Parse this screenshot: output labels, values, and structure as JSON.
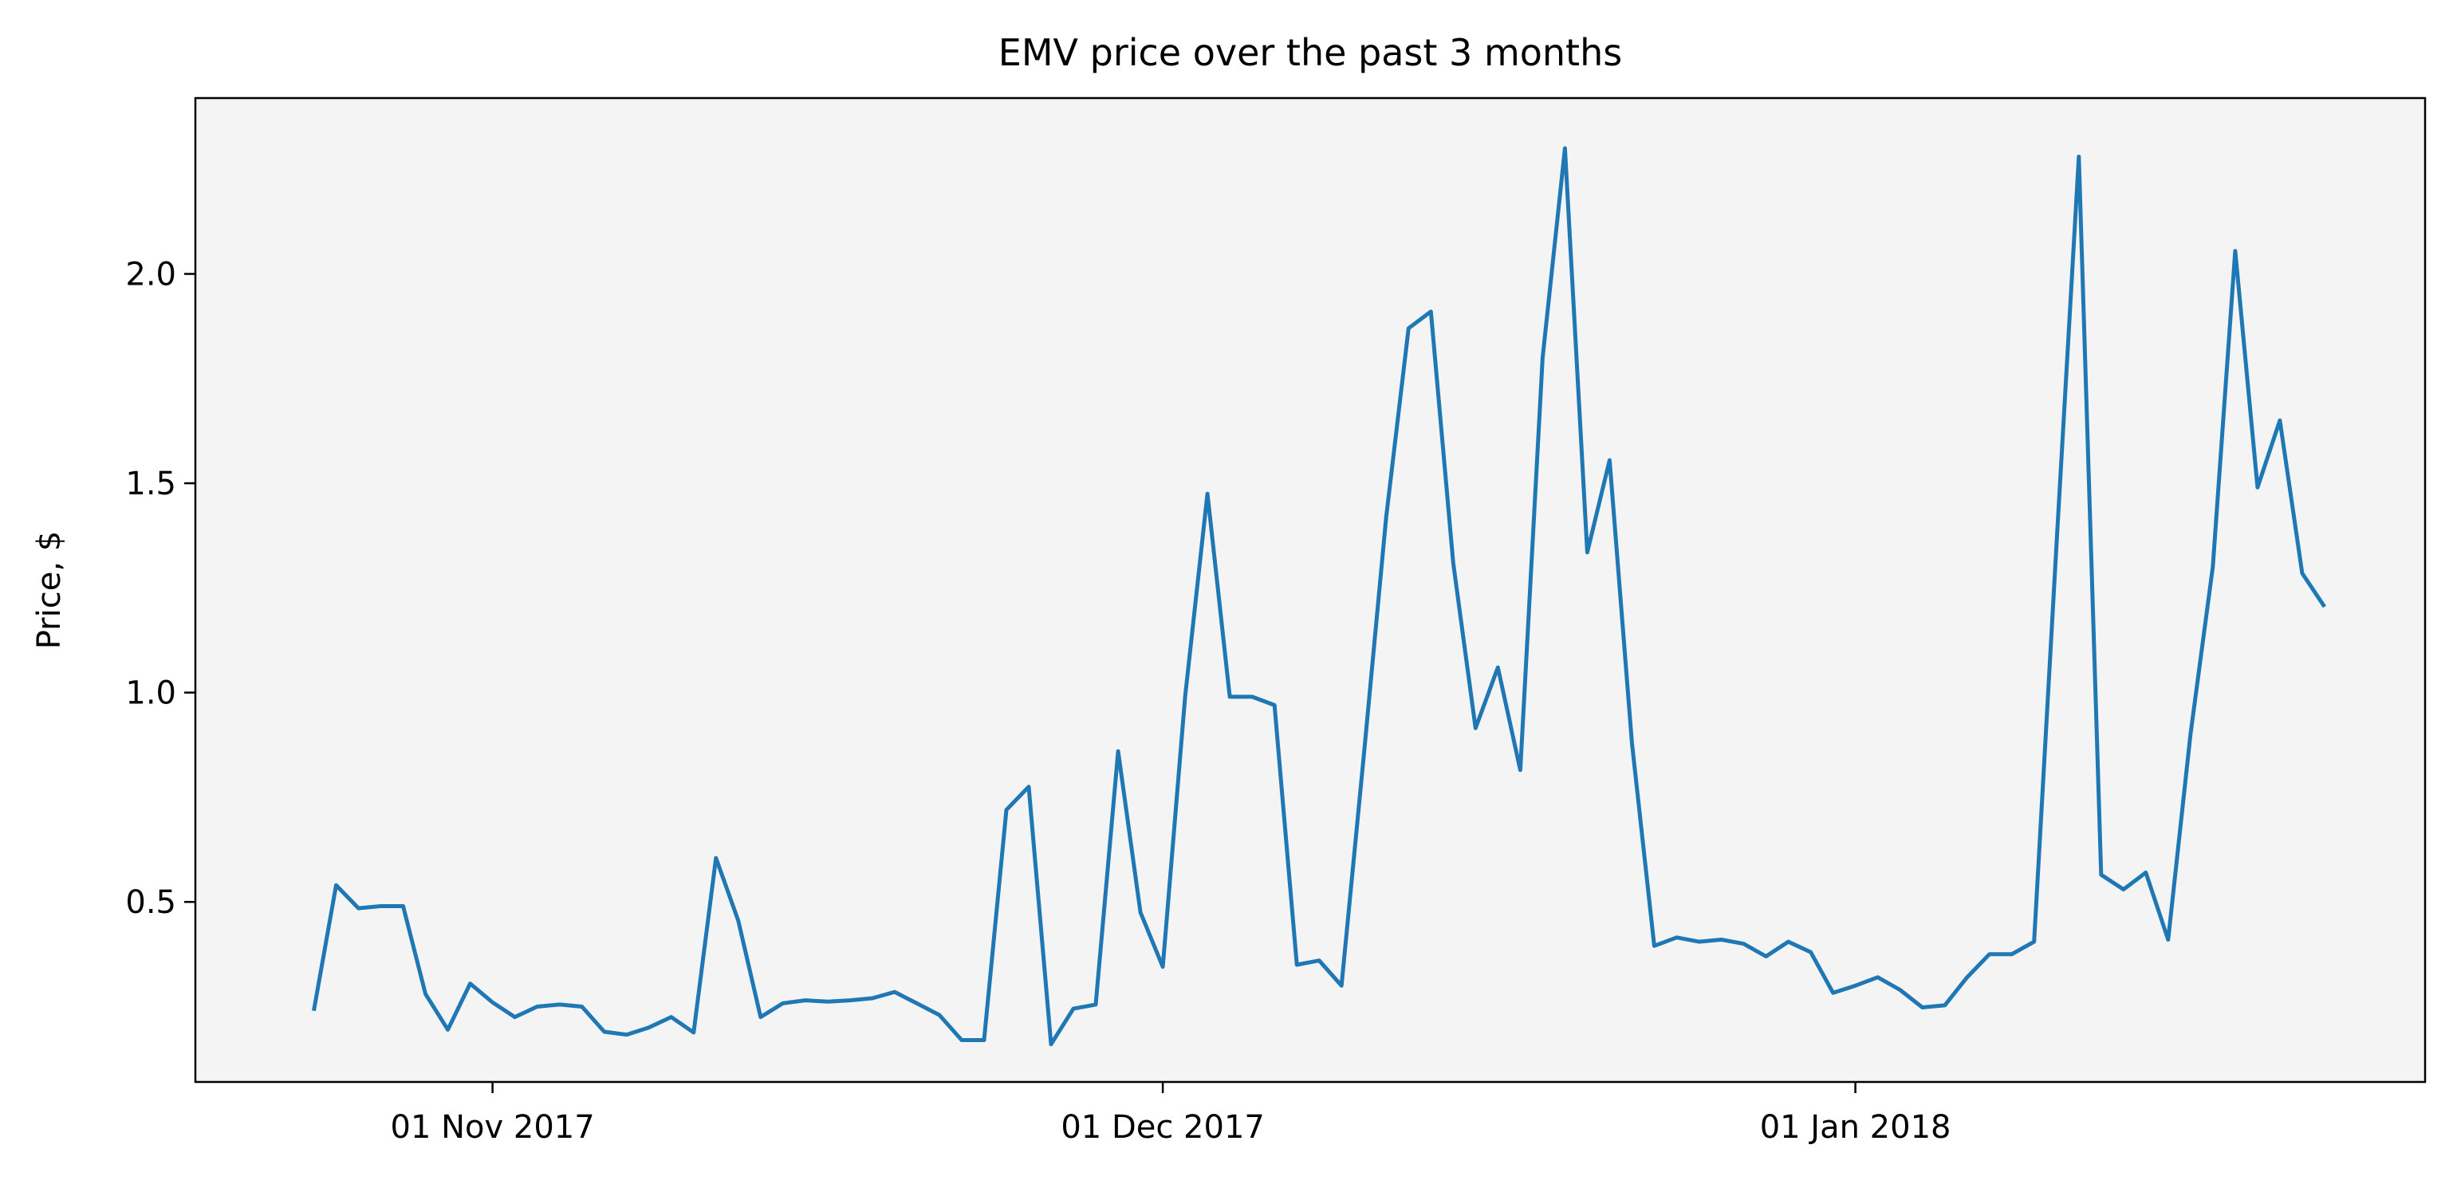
{
  "chart_data": {
    "type": "line",
    "title": "EMV price over the past 3 months",
    "xlabel": "",
    "ylabel": "Price, $",
    "ylim": [
      0.07,
      2.42
    ],
    "xlim": [
      -13.3,
      86.5
    ],
    "yticks": [
      0.5,
      1.0,
      1.5,
      2.0
    ],
    "ytick_labels": [
      "0.5",
      "1.0",
      "1.5",
      "2.0"
    ],
    "xticks": [
      0,
      30,
      61
    ],
    "xtick_labels": [
      "01 Nov 2017",
      "01 Dec 2017",
      "01 Jan 2018"
    ],
    "x_units": "days since 01 Nov 2017",
    "series": [
      {
        "name": "EMV",
        "color": "#1f77b4",
        "points": [
          [
            -8.0,
            0.24
          ],
          [
            -7.0,
            0.54
          ],
          [
            -6.0,
            0.485
          ],
          [
            -5.0,
            0.49
          ],
          [
            -4.0,
            0.49
          ],
          [
            -3.0,
            0.28
          ],
          [
            -2.0,
            0.195
          ],
          [
            -1.0,
            0.305
          ],
          [
            0.0,
            0.26
          ],
          [
            1.0,
            0.225
          ],
          [
            2.0,
            0.25
          ],
          [
            3.0,
            0.255
          ],
          [
            4.0,
            0.25
          ],
          [
            5.0,
            0.19
          ],
          [
            6.0,
            0.183
          ],
          [
            7.0,
            0.2
          ],
          [
            8.0,
            0.225
          ],
          [
            9.0,
            0.188
          ],
          [
            10.0,
            0.605
          ],
          [
            11.0,
            0.455
          ],
          [
            12.0,
            0.225
          ],
          [
            13.0,
            0.258
          ],
          [
            14.0,
            0.265
          ],
          [
            15.0,
            0.262
          ],
          [
            16.0,
            0.265
          ],
          [
            17.0,
            0.27
          ],
          [
            18.0,
            0.285
          ],
          [
            20.0,
            0.23
          ],
          [
            21.0,
            0.17
          ],
          [
            22.0,
            0.17
          ],
          [
            23.0,
            0.72
          ],
          [
            24.0,
            0.775
          ],
          [
            25.0,
            0.16
          ],
          [
            26.0,
            0.245
          ],
          [
            27.0,
            0.255
          ],
          [
            28.0,
            0.86
          ],
          [
            29.0,
            0.475
          ],
          [
            30.0,
            0.345
          ],
          [
            31.0,
            0.99
          ],
          [
            32.0,
            1.475
          ],
          [
            33.0,
            0.99
          ],
          [
            34.0,
            0.99
          ],
          [
            35.0,
            0.97
          ],
          [
            36.0,
            0.35
          ],
          [
            37.0,
            0.36
          ],
          [
            38.0,
            0.3
          ],
          [
            39.0,
            0.85
          ],
          [
            40.0,
            1.42
          ],
          [
            41.0,
            1.87
          ],
          [
            42.0,
            1.91
          ],
          [
            43.0,
            1.31
          ],
          [
            44.0,
            0.915
          ],
          [
            45.0,
            1.06
          ],
          [
            46.0,
            0.815
          ],
          [
            47.0,
            1.8
          ],
          [
            48.0,
            2.3
          ],
          [
            49.0,
            1.335
          ],
          [
            50.0,
            1.555
          ],
          [
            51.0,
            0.88
          ],
          [
            52.0,
            0.395
          ],
          [
            53.0,
            0.415
          ],
          [
            54.0,
            0.405
          ],
          [
            55.0,
            0.41
          ],
          [
            56.0,
            0.4
          ],
          [
            57.0,
            0.37
          ],
          [
            58.0,
            0.405
          ],
          [
            59.0,
            0.38
          ],
          [
            60.0,
            0.283
          ],
          [
            61.0,
            0.3
          ],
          [
            62.0,
            0.32
          ],
          [
            63.0,
            0.29
          ],
          [
            64.0,
            0.248
          ],
          [
            65.0,
            0.253
          ],
          [
            66.0,
            0.32
          ],
          [
            67.0,
            0.375
          ],
          [
            68.0,
            0.375
          ],
          [
            69.0,
            0.405
          ],
          [
            70.0,
            1.35
          ],
          [
            71.0,
            2.28
          ],
          [
            72.0,
            0.565
          ],
          [
            73.0,
            0.53
          ],
          [
            74.0,
            0.57
          ],
          [
            75.0,
            0.41
          ],
          [
            76.0,
            0.9
          ],
          [
            77.0,
            1.3
          ],
          [
            78.0,
            2.055
          ],
          [
            79.0,
            1.49
          ],
          [
            80.0,
            1.65
          ],
          [
            81.0,
            1.285
          ],
          [
            82.0,
            1.205
          ]
        ]
      }
    ]
  }
}
